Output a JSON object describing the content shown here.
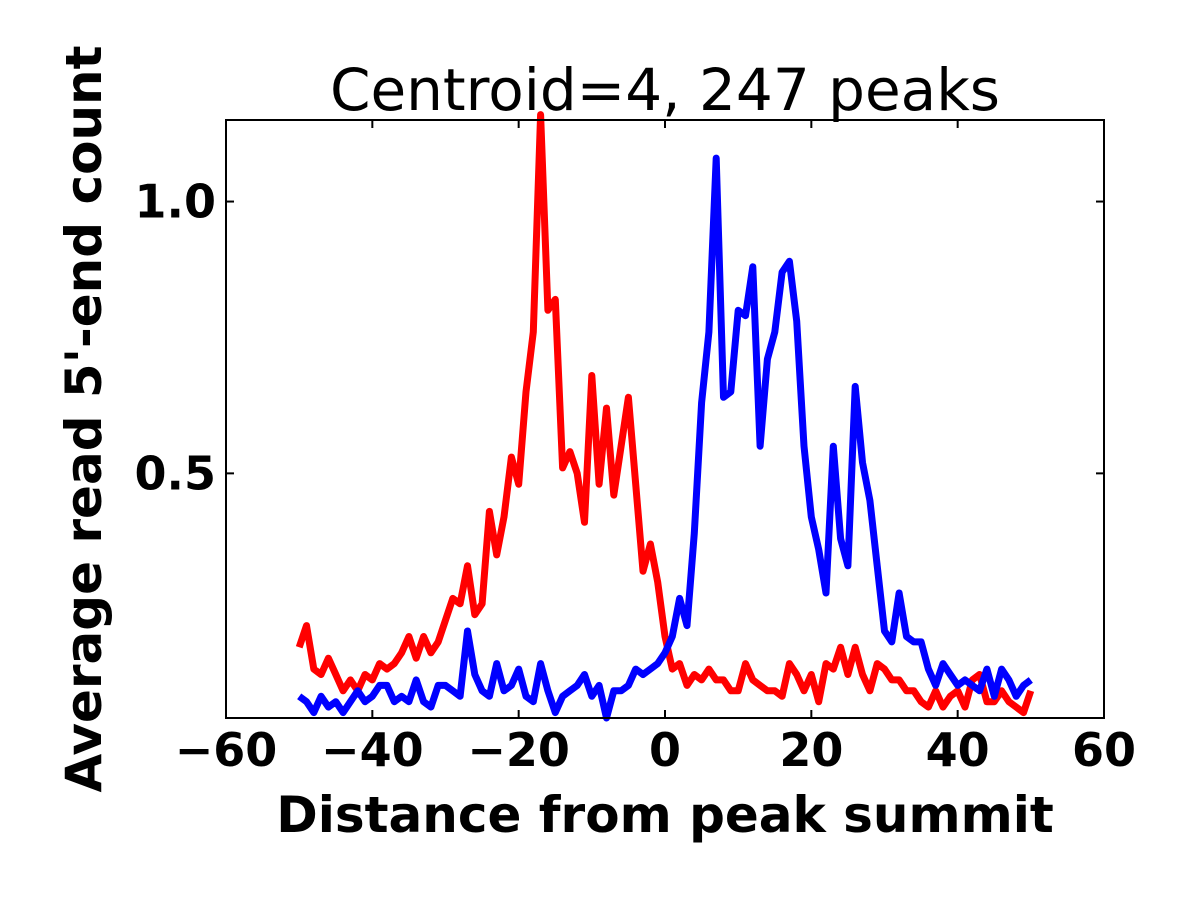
{
  "chart_data": {
    "type": "line",
    "title": "Centroid=4, 247 peaks",
    "xlabel": "Distance from peak summit",
    "ylabel": "Average read 5'-end count",
    "xlim": [
      -60,
      60
    ],
    "ylim": [
      0.05,
      1.15
    ],
    "xticks": [
      -60,
      -40,
      -20,
      0,
      20,
      40,
      60
    ],
    "xtick_labels": [
      "−60",
      "−40",
      "−20",
      "0",
      "20",
      "40",
      "60"
    ],
    "yticks": [
      0.5,
      1.0
    ],
    "ytick_labels": [
      "0.5",
      "1.0"
    ],
    "grid": false,
    "legend": "none",
    "x": [
      -50,
      -49,
      -48,
      -47,
      -46,
      -45,
      -44,
      -43,
      -42,
      -41,
      -40,
      -39,
      -38,
      -37,
      -36,
      -35,
      -34,
      -33,
      -32,
      -31,
      -30,
      -29,
      -28,
      -27,
      -26,
      -25,
      -24,
      -23,
      -22,
      -21,
      -20,
      -19,
      -18,
      -17,
      -16,
      -15,
      -14,
      -13,
      -12,
      -11,
      -10,
      -9,
      -8,
      -7,
      -6,
      -5,
      -4,
      -3,
      -2,
      -1,
      0,
      1,
      2,
      3,
      4,
      5,
      6,
      7,
      8,
      9,
      10,
      11,
      12,
      13,
      14,
      15,
      16,
      17,
      18,
      19,
      20,
      21,
      22,
      23,
      24,
      25,
      26,
      27,
      28,
      29,
      30,
      31,
      32,
      33,
      34,
      35,
      36,
      37,
      38,
      39,
      40,
      41,
      42,
      43,
      44,
      45,
      46,
      47,
      48,
      49,
      50
    ],
    "series": [
      {
        "color": "#ff0000",
        "values": [
          0.18,
          0.22,
          0.14,
          0.13,
          0.16,
          0.13,
          0.1,
          0.12,
          0.1,
          0.13,
          0.12,
          0.15,
          0.14,
          0.15,
          0.17,
          0.2,
          0.16,
          0.2,
          0.17,
          0.19,
          0.23,
          0.27,
          0.26,
          0.33,
          0.24,
          0.26,
          0.43,
          0.35,
          0.42,
          0.53,
          0.48,
          0.65,
          0.76,
          1.16,
          0.8,
          0.82,
          0.51,
          0.54,
          0.5,
          0.41,
          0.68,
          0.48,
          0.62,
          0.46,
          0.55,
          0.64,
          0.48,
          0.32,
          0.37,
          0.3,
          0.2,
          0.14,
          0.15,
          0.11,
          0.13,
          0.12,
          0.14,
          0.12,
          0.12,
          0.1,
          0.1,
          0.15,
          0.12,
          0.11,
          0.1,
          0.1,
          0.09,
          0.15,
          0.13,
          0.1,
          0.13,
          0.08,
          0.15,
          0.14,
          0.18,
          0.13,
          0.18,
          0.13,
          0.1,
          0.15,
          0.14,
          0.12,
          0.12,
          0.1,
          0.1,
          0.08,
          0.07,
          0.1,
          0.07,
          0.09,
          0.1,
          0.07,
          0.12,
          0.13,
          0.08,
          0.08,
          0.1,
          0.08,
          0.07,
          0.06,
          0.1
        ]
      },
      {
        "color": "#0000ff",
        "values": [
          0.09,
          0.08,
          0.06,
          0.09,
          0.07,
          0.08,
          0.06,
          0.08,
          0.1,
          0.08,
          0.09,
          0.11,
          0.11,
          0.08,
          0.09,
          0.08,
          0.12,
          0.08,
          0.07,
          0.11,
          0.11,
          0.1,
          0.09,
          0.21,
          0.13,
          0.1,
          0.09,
          0.15,
          0.1,
          0.11,
          0.14,
          0.09,
          0.08,
          0.15,
          0.1,
          0.06,
          0.09,
          0.1,
          0.11,
          0.13,
          0.09,
          0.11,
          0.05,
          0.1,
          0.1,
          0.11,
          0.14,
          0.13,
          0.14,
          0.15,
          0.17,
          0.2,
          0.27,
          0.22,
          0.39,
          0.63,
          0.76,
          1.08,
          0.64,
          0.65,
          0.8,
          0.79,
          0.88,
          0.55,
          0.71,
          0.76,
          0.87,
          0.89,
          0.78,
          0.55,
          0.42,
          0.36,
          0.28,
          0.55,
          0.38,
          0.33,
          0.66,
          0.52,
          0.45,
          0.33,
          0.21,
          0.19,
          0.28,
          0.2,
          0.19,
          0.19,
          0.14,
          0.11,
          0.15,
          0.13,
          0.11,
          0.12,
          0.11,
          0.1,
          0.14,
          0.09,
          0.14,
          0.12,
          0.09,
          0.11,
          0.12
        ]
      }
    ]
  }
}
